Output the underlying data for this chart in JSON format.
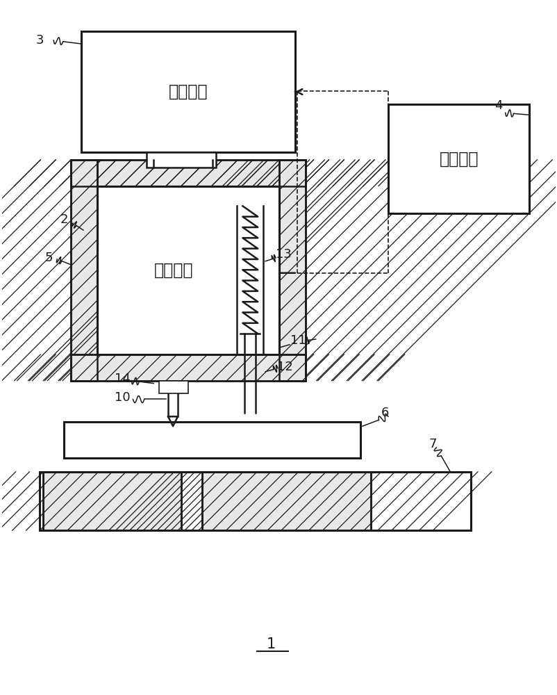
{
  "bg_color": "#ffffff",
  "lc": "#1a1a1a",
  "fig_width": 8.03,
  "fig_height": 10.0,
  "drive_unit_text": "驱动单元",
  "control_unit_text": "控制单元",
  "rotate_unit_text": "旋转单元",
  "label_1": "1"
}
